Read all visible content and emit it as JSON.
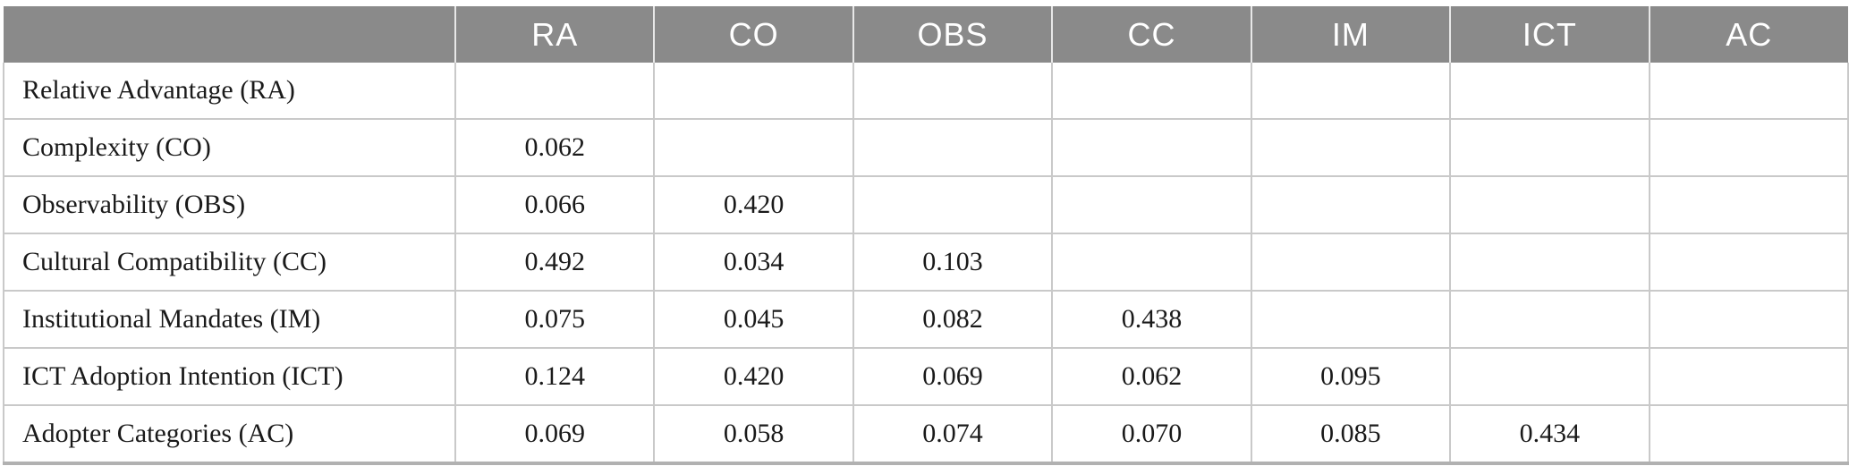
{
  "table": {
    "corner_label": "",
    "columns": [
      "RA",
      "CO",
      "OBS",
      "CC",
      "IM",
      "ICT",
      "AC"
    ],
    "rows": [
      {
        "label": "Relative Advantage (RA)",
        "values": [
          "",
          "",
          "",
          "",
          "",
          "",
          ""
        ]
      },
      {
        "label": "Complexity (CO)",
        "values": [
          "0.062",
          "",
          "",
          "",
          "",
          "",
          ""
        ]
      },
      {
        "label": "Observability (OBS)",
        "values": [
          "0.066",
          "0.420",
          "",
          "",
          "",
          "",
          ""
        ]
      },
      {
        "label": "Cultural Compatibility (CC)",
        "values": [
          "0.492",
          "0.034",
          "0.103",
          "",
          "",
          "",
          ""
        ]
      },
      {
        "label": "Institutional Mandates (IM)",
        "values": [
          "0.075",
          "0.045",
          "0.082",
          "0.438",
          "",
          "",
          ""
        ]
      },
      {
        "label": "ICT Adoption Intention (ICT)",
        "values": [
          "0.124",
          "0.420",
          "0.069",
          "0.062",
          "0.095",
          "",
          ""
        ]
      },
      {
        "label": "Adopter Categories (AC)",
        "values": [
          "0.069",
          "0.058",
          "0.074",
          "0.070",
          "0.085",
          "0.434",
          ""
        ]
      }
    ],
    "colors": {
      "header_bg": "#8a8a8a",
      "header_text": "#ffffff",
      "body_text": "#1a1a1a",
      "grid_line": "#c9c9c9",
      "bottom_border": "#b1b1b1"
    }
  },
  "chart_data": {
    "type": "table",
    "columns": [
      "",
      "RA",
      "CO",
      "OBS",
      "CC",
      "IM",
      "ICT",
      "AC"
    ],
    "rows": [
      [
        "Relative Advantage (RA)",
        "",
        "",
        "",
        "",
        "",
        "",
        ""
      ],
      [
        "Complexity (CO)",
        "0.062",
        "",
        "",
        "",
        "",
        "",
        ""
      ],
      [
        "Observability (OBS)",
        "0.066",
        "0.420",
        "",
        "",
        "",
        "",
        ""
      ],
      [
        "Cultural Compatibility (CC)",
        "0.492",
        "0.034",
        "0.103",
        "",
        "",
        "",
        ""
      ],
      [
        "Institutional Mandates (IM)",
        "0.075",
        "0.045",
        "0.082",
        "0.438",
        "",
        "",
        ""
      ],
      [
        "ICT Adoption Intention (ICT)",
        "0.124",
        "0.420",
        "0.069",
        "0.062",
        "0.095",
        "",
        ""
      ],
      [
        "Adopter Categories (AC)",
        "0.069",
        "0.058",
        "0.074",
        "0.070",
        "0.085",
        "0.434",
        ""
      ]
    ]
  }
}
